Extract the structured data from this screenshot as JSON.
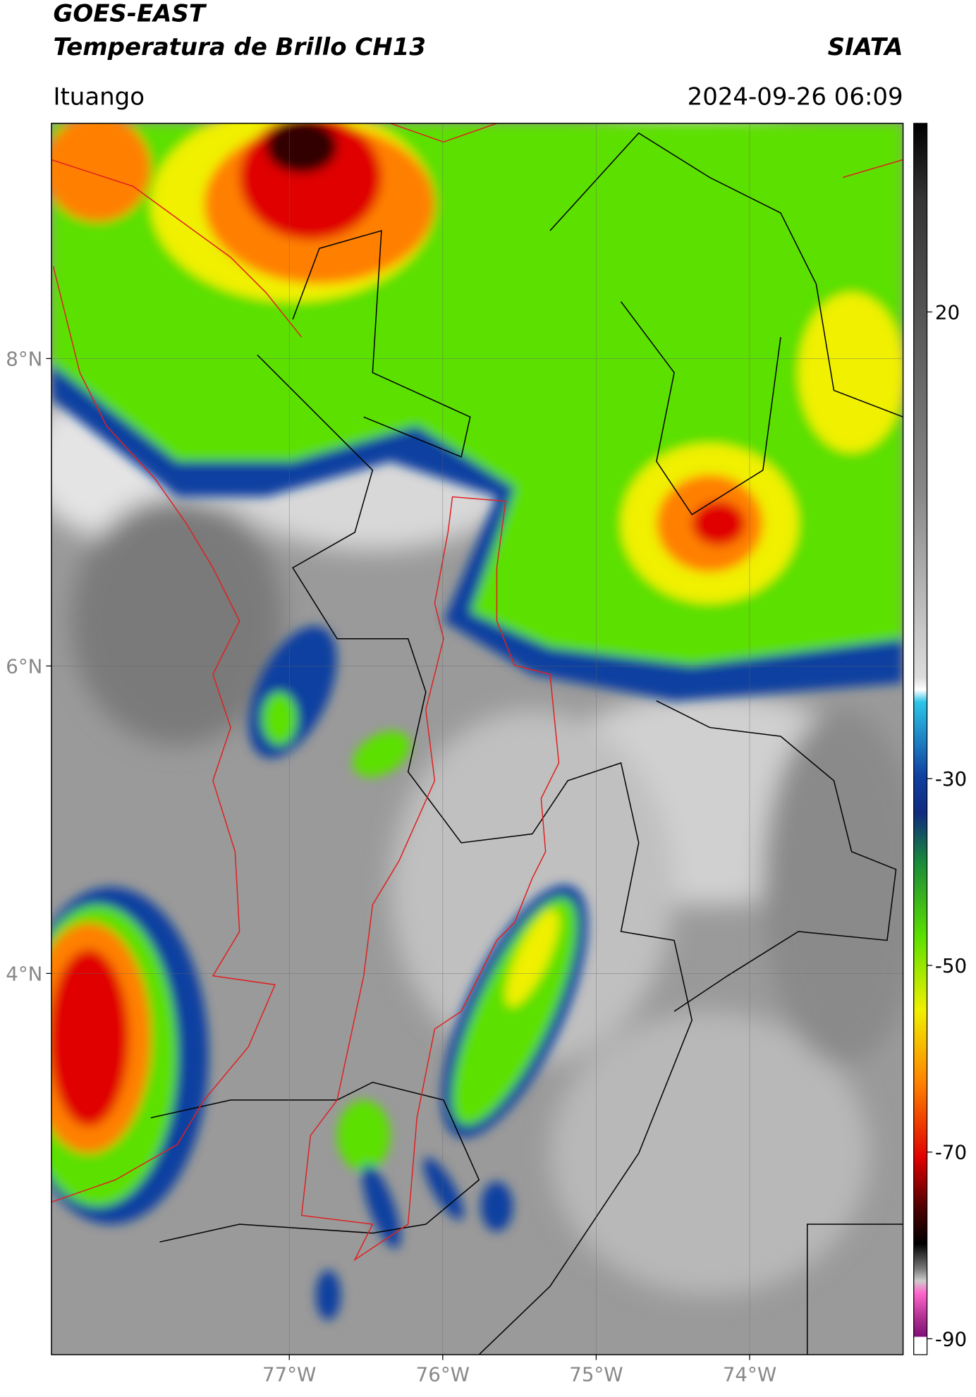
{
  "header": {
    "title": "GOES-EAST",
    "subtitle": "Temperatura de Brillo CH13",
    "brand": "SIATA",
    "location": "Ituango",
    "datetime": "2024-09-26 06:09"
  },
  "map": {
    "xlim": [
      -78.55,
      -73.0
    ],
    "ylim": [
      1.52,
      9.53
    ],
    "xticks": [
      {
        "value": -77,
        "label": "77°W"
      },
      {
        "value": -76,
        "label": "76°W"
      },
      {
        "value": -75,
        "label": "75°W"
      },
      {
        "value": -74,
        "label": "74°W"
      }
    ],
    "yticks": [
      {
        "value": 8,
        "label": "8°N"
      },
      {
        "value": 6,
        "label": "6°N"
      },
      {
        "value": 4,
        "label": "4°N"
      }
    ],
    "grid": true
  },
  "colorbar": {
    "lim": [
      -91.7,
      40.2
    ],
    "ticks": [
      20,
      -30,
      -50,
      -70,
      -90
    ]
  }
}
